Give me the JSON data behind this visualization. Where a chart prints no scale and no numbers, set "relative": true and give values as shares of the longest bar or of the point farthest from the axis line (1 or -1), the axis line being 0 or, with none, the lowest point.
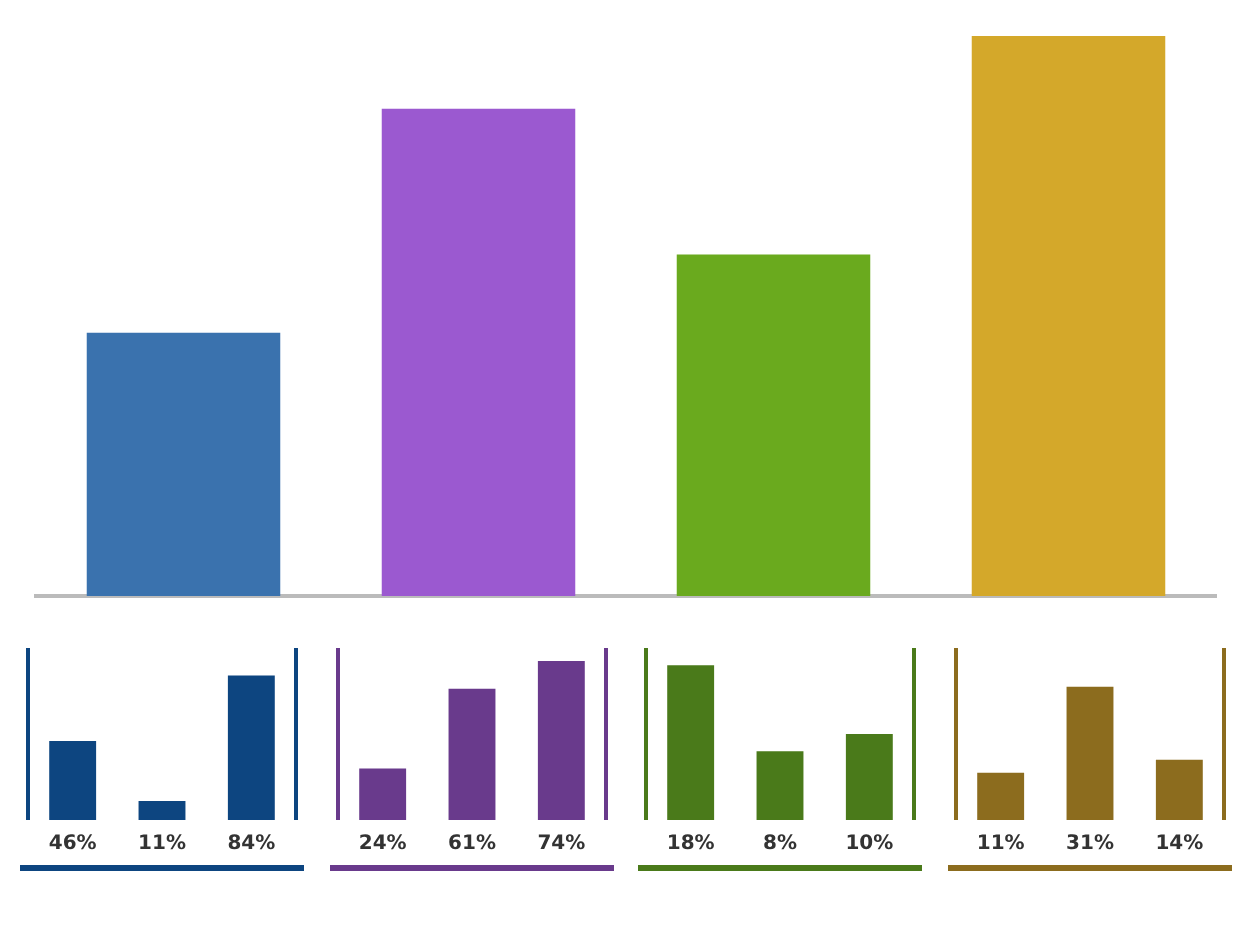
{
  "chart_data": [
    {
      "type": "bar",
      "relative": true,
      "categories": [
        null,
        null,
        null,
        null
      ],
      "values": [
        0.47,
        0.87,
        0.61,
        1
      ],
      "colors": [
        "#3a72ae",
        "#9b59d0",
        "#6aaa1e",
        "#d4a82a"
      ]
    },
    {
      "type": "bar",
      "categories": [
        null,
        null,
        null
      ],
      "values": [
        46,
        11,
        84
      ],
      "value_labels": [
        "46%",
        "11%",
        "84%"
      ],
      "color": "#0d4580"
    },
    {
      "type": "bar",
      "categories": [
        null,
        null,
        null
      ],
      "values": [
        24,
        61,
        74
      ],
      "value_labels": [
        "24%",
        "61%",
        "74%"
      ],
      "color": "#693a8c"
    },
    {
      "type": "bar",
      "categories": [
        null,
        null,
        null
      ],
      "values": [
        18,
        8,
        10
      ],
      "value_labels": [
        "18%",
        "8%",
        "10%"
      ],
      "color": "#4a7a1a"
    },
    {
      "type": "bar",
      "categories": [
        null,
        null,
        null
      ],
      "values": [
        11,
        31,
        14
      ],
      "value_labels": [
        "11%",
        "31%",
        "14%"
      ],
      "color": "#8c6c1e"
    }
  ]
}
